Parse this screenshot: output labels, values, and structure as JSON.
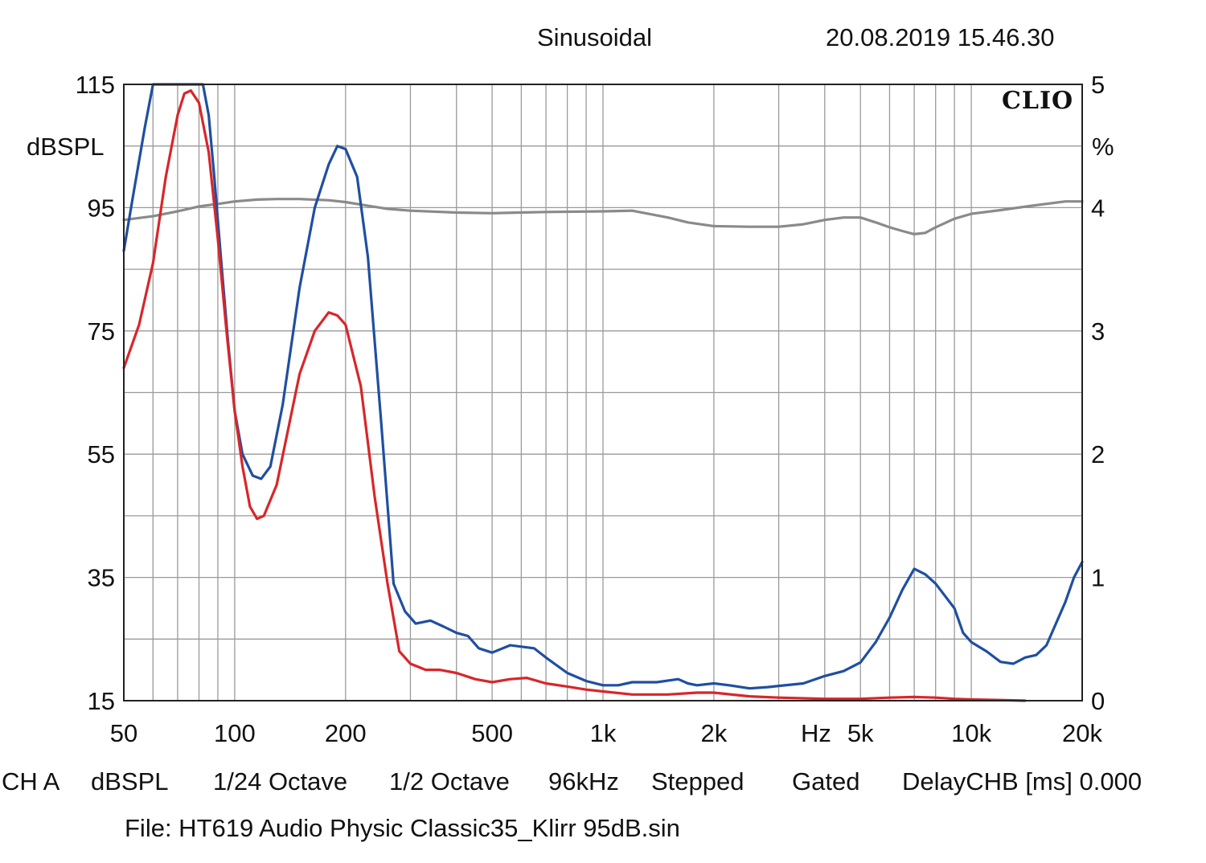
{
  "header": {
    "mode": "Sinusoidal",
    "timestamp": "20.08.2019 15.46.30"
  },
  "brand": "CLIO",
  "footer": {
    "channel": "CH A",
    "unit": "dBSPL",
    "smoothing": "1/24 Octave",
    "resolution": "1/2 Octave",
    "sample_rate": "96kHz",
    "sweep": "Stepped",
    "window": "Gated",
    "delay": "DelayCHB [ms] 0.000",
    "file": "File: HT619 Audio Physic Classic35_Klirr 95dB.sin"
  },
  "colors": {
    "grid": "#9a9a9a",
    "frame": "#222222",
    "response": "#8a8a8a",
    "distortion_blue": "#1f4fa0",
    "distortion_red": "#d8262a"
  },
  "chart_data": {
    "type": "line",
    "x_scale": "log",
    "xlim": [
      50,
      20000
    ],
    "ylim_left": [
      15,
      115
    ],
    "ylim_right": [
      0,
      5
    ],
    "ylabel_left": "dBSPL",
    "ylabel_right": "%",
    "xlabel": "Hz",
    "x_tick_labels": [
      {
        "value": 50,
        "label": "50"
      },
      {
        "value": 100,
        "label": "100"
      },
      {
        "value": 200,
        "label": "200"
      },
      {
        "value": 500,
        "label": "500"
      },
      {
        "value": 1000,
        "label": "1k"
      },
      {
        "value": 2000,
        "label": "2k"
      },
      {
        "value": 5000,
        "label": "5k"
      },
      {
        "value": 10000,
        "label": "10k"
      },
      {
        "value": 20000,
        "label": "20k"
      }
    ],
    "y_left_ticks": [
      {
        "value": 115,
        "label": "115"
      },
      {
        "value": 95,
        "label": "95"
      },
      {
        "value": 75,
        "label": "75"
      },
      {
        "value": 55,
        "label": "55"
      },
      {
        "value": 35,
        "label": "35"
      },
      {
        "value": 15,
        "label": "15"
      }
    ],
    "y_right_ticks": [
      {
        "value": 5,
        "label": "5"
      },
      {
        "value": 4,
        "label": "4"
      },
      {
        "value": 3,
        "label": "3"
      },
      {
        "value": 2,
        "label": "2"
      },
      {
        "value": 1,
        "label": "1"
      },
      {
        "value": 0,
        "label": "0"
      }
    ],
    "series": [
      {
        "color": "#8a8a8a",
        "axis": "left",
        "x": [
          50,
          60,
          70,
          80,
          90,
          100,
          115,
          130,
          150,
          180,
          200,
          230,
          260,
          300,
          400,
          500,
          700,
          1000,
          1200,
          1500,
          1700,
          2000,
          2500,
          3000,
          3500,
          4000,
          4500,
          5000,
          5500,
          6000,
          6500,
          7000,
          7500,
          8000,
          9000,
          10000,
          12000,
          15000,
          18000,
          20000
        ],
        "y": [
          93,
          93.6,
          94.4,
          95.2,
          95.6,
          96,
          96.3,
          96.4,
          96.4,
          96.2,
          95.9,
          95.3,
          94.8,
          94.5,
          94.2,
          94.1,
          94.3,
          94.4,
          94.5,
          93.4,
          92.6,
          92.0,
          91.9,
          91.9,
          92.3,
          93.0,
          93.4,
          93.4,
          92.6,
          91.8,
          91.2,
          90.7,
          90.9,
          91.8,
          93.2,
          94.0,
          94.6,
          95.4,
          96.0,
          96.0
        ]
      },
      {
        "color": "#1f4fa0",
        "axis": "left",
        "x": [
          50,
          53,
          57,
          60,
          62,
          75,
          82,
          85,
          88,
          92,
          96,
          100,
          105,
          112,
          118,
          125,
          135,
          150,
          165,
          180,
          190,
          200,
          215,
          230,
          250,
          270,
          290,
          310,
          340,
          370,
          400,
          430,
          460,
          500,
          560,
          650,
          700,
          800,
          900,
          1000,
          1100,
          1200,
          1400,
          1600,
          1700,
          1800,
          2000,
          2200,
          2500,
          2800,
          3000,
          3500,
          4000,
          4500,
          5000,
          5500,
          6000,
          6500,
          7000,
          7500,
          8000,
          9000,
          9500,
          10000,
          11000,
          12000,
          13000,
          14000,
          15000,
          16000,
          18000,
          19000,
          20000
        ],
        "y": [
          88,
          97,
          108,
          115,
          115,
          115,
          115,
          110,
          100,
          86,
          73,
          62,
          55,
          51.5,
          51,
          53,
          63,
          82,
          95,
          102,
          105,
          104.5,
          100,
          87,
          60,
          34,
          29.5,
          27.5,
          28,
          27,
          26,
          25.5,
          23.5,
          22.8,
          24,
          23.5,
          22,
          19.5,
          18.2,
          17.5,
          17.5,
          18.0,
          18.0,
          18.5,
          17.8,
          17.5,
          17.8,
          17.5,
          17.0,
          17.2,
          17.4,
          17.8,
          19.0,
          19.8,
          21.2,
          24.5,
          28.5,
          33.0,
          36.4,
          35.5,
          34.0,
          30.0,
          26.0,
          24.5,
          23.0,
          21.3,
          21.0,
          22.0,
          22.4,
          24.0,
          31.0,
          35.0,
          37.5
        ]
      },
      {
        "color": "#d8262a",
        "axis": "left",
        "x": [
          50,
          55,
          60,
          65,
          70,
          73,
          76,
          80,
          85,
          90,
          95,
          100,
          105,
          110,
          115,
          120,
          130,
          150,
          165,
          180,
          190,
          200,
          220,
          240,
          260,
          280,
          300,
          330,
          360,
          400,
          450,
          500,
          560,
          620,
          700,
          800,
          900,
          1000,
          1200,
          1500,
          1800,
          2000,
          2500,
          3000,
          4000,
          5000,
          6000,
          7000,
          8000,
          9000,
          10000,
          12000,
          14000
        ],
        "y": [
          69,
          76,
          86,
          100,
          110,
          113.5,
          114,
          112,
          104,
          90,
          75,
          62,
          53,
          46.5,
          44.5,
          45,
          50,
          68,
          75,
          78,
          77.5,
          76,
          66,
          48,
          34,
          23,
          21,
          20,
          20,
          19.5,
          18.5,
          18,
          18.5,
          18.7,
          17.8,
          17.3,
          16.8,
          16.5,
          16.0,
          16.0,
          16.3,
          16.3,
          15.7,
          15.5,
          15.3,
          15.3,
          15.5,
          15.6,
          15.5,
          15.3,
          15.2,
          15.1,
          15.0
        ]
      }
    ]
  }
}
